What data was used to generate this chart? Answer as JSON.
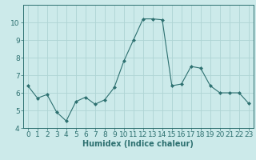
{
  "x": [
    0,
    1,
    2,
    3,
    4,
    5,
    6,
    7,
    8,
    9,
    10,
    11,
    12,
    13,
    14,
    15,
    16,
    17,
    18,
    19,
    20,
    21,
    22,
    23
  ],
  "y": [
    6.4,
    5.7,
    5.9,
    4.9,
    4.4,
    5.5,
    5.75,
    5.35,
    5.6,
    6.3,
    7.8,
    9.0,
    10.2,
    10.2,
    10.15,
    6.4,
    6.5,
    7.5,
    7.4,
    6.4,
    6.0,
    6.0,
    6.0,
    5.4
  ],
  "line_color": "#2d7070",
  "marker": "D",
  "marker_size": 2,
  "bg_color": "#cceaea",
  "grid_color": "#aed4d4",
  "xlabel": "Humidex (Indice chaleur)",
  "ylim": [
    4,
    11
  ],
  "xlim": [
    -0.5,
    23.5
  ],
  "yticks": [
    4,
    5,
    6,
    7,
    8,
    9,
    10
  ],
  "xticks": [
    0,
    1,
    2,
    3,
    4,
    5,
    6,
    7,
    8,
    9,
    10,
    11,
    12,
    13,
    14,
    15,
    16,
    17,
    18,
    19,
    20,
    21,
    22,
    23
  ],
  "tick_color": "#2d7070",
  "axis_color": "#2d7070",
  "xlabel_fontsize": 7,
  "tick_fontsize": 6.5
}
